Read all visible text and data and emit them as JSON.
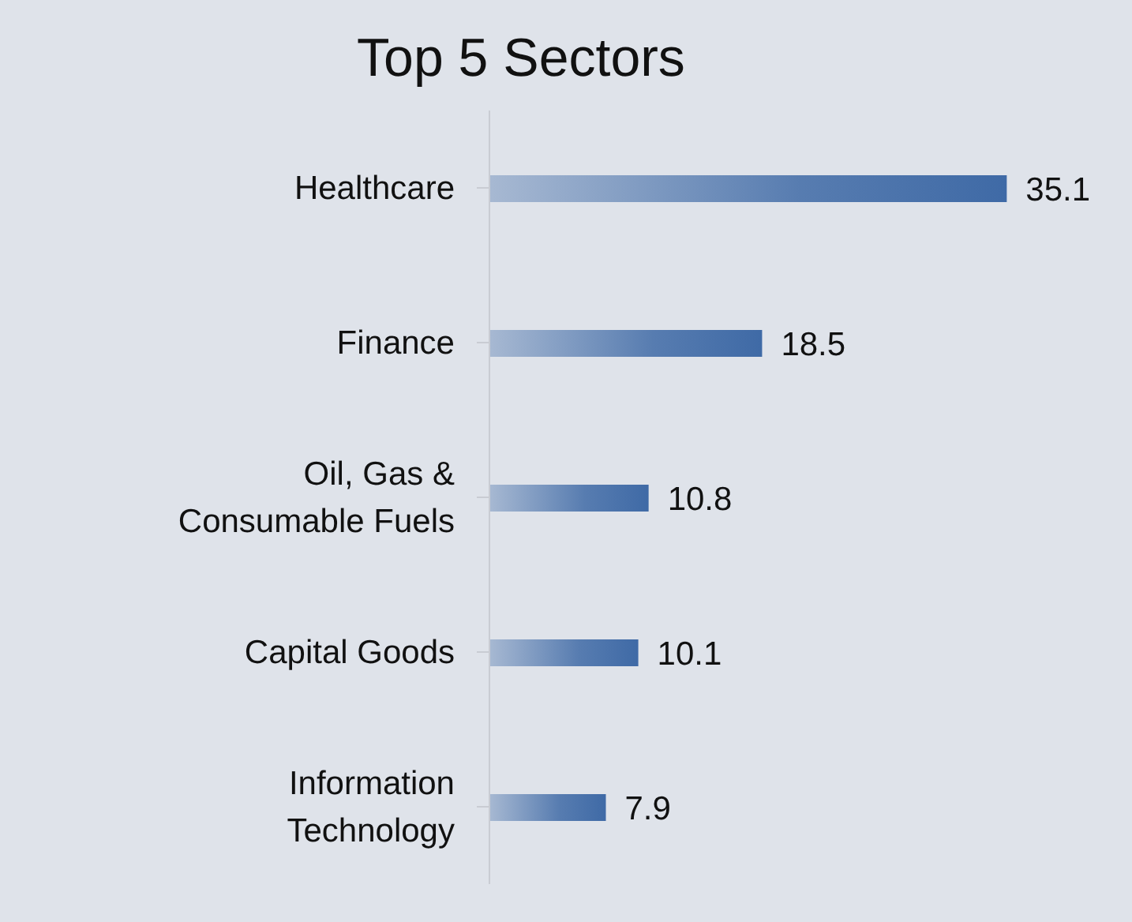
{
  "chart_data": {
    "type": "bar",
    "orientation": "horizontal",
    "title": "Top 5 Sectors",
    "categories": [
      "Healthcare",
      "Finance",
      "Oil, Gas & Consumable Fuels",
      "Capital Goods",
      "Information Technology"
    ],
    "values": [
      35.1,
      18.5,
      10.8,
      10.1,
      7.9
    ],
    "color": "#3f6aa6",
    "data_labels": true,
    "tick_labels": "y"
  }
}
